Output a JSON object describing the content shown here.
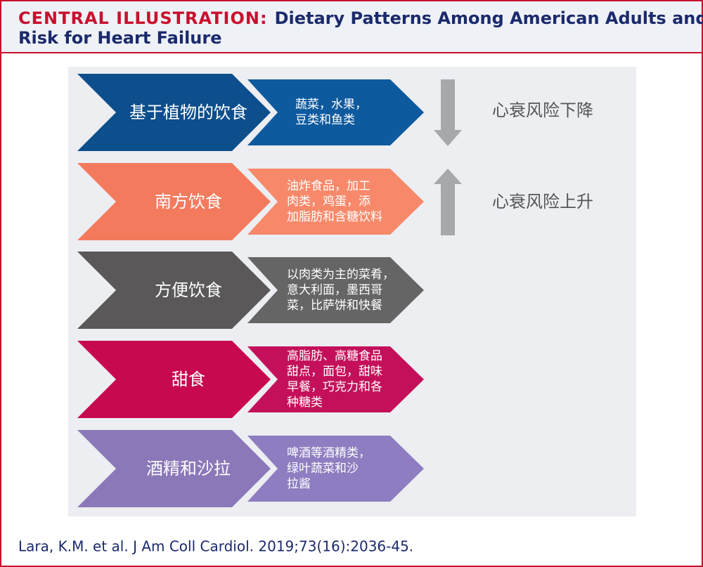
{
  "header": {
    "label": "CENTRAL ILLUSTRATION:",
    "title_line1": "Dietary Patterns Among American Adults and",
    "title_line2": "Risk for Heart Failure"
  },
  "rows": [
    {
      "name": "基于植物的饮食",
      "foods": [
        "蔬菜，水果，",
        "豆类和鱼类"
      ]
    },
    {
      "name": "南方饮食",
      "foods": [
        "油炸食品，加工",
        "肉类，鸡蛋，添",
        "加脂肪和含糖饮料"
      ]
    },
    {
      "name": "方便饮食",
      "foods": [
        "以肉类为主的菜肴，",
        "意大利面，墨西哥",
        "菜，比萨饼和快餐"
      ]
    },
    {
      "name": "甜食",
      "foods": [
        "高脂肪、高糖食品",
        "甜点，面包，甜味",
        "早餐，巧克力和各",
        "种糖类"
      ]
    },
    {
      "name": "酒精和沙拉",
      "foods": [
        "啤酒等酒精类，",
        "绿叶蔬菜和沙",
        "拉酱"
      ]
    }
  ],
  "risks": {
    "down": "心衰风险下降",
    "up": "心衰风险上升"
  },
  "citation": "Lara, K.M. et al. J Am Coll Cardiol. 2019;73(16):2036-45."
}
